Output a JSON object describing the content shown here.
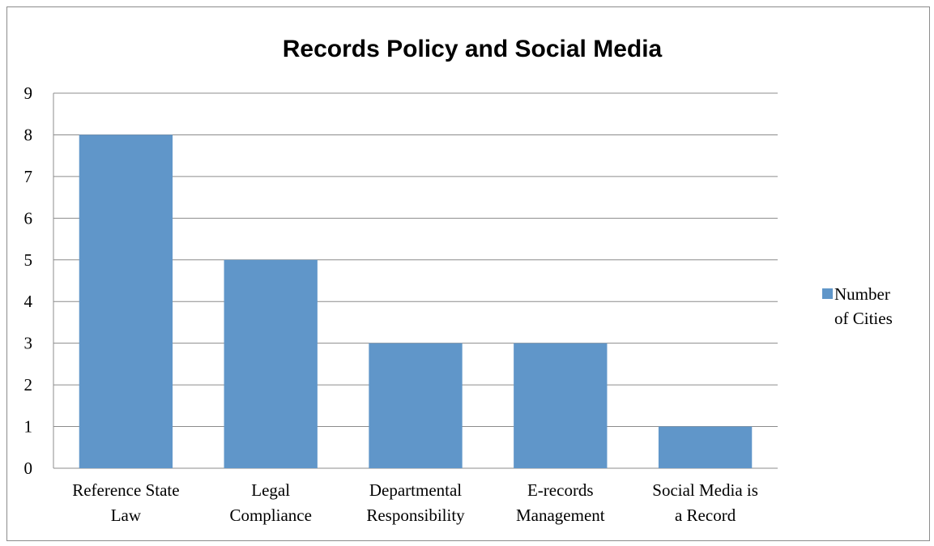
{
  "chart_data": {
    "type": "bar",
    "title": "Records Policy and Social Media",
    "xlabel": "",
    "ylabel": "",
    "ylim": [
      0,
      9
    ],
    "yticks": [
      0,
      1,
      2,
      3,
      4,
      5,
      6,
      7,
      8,
      9
    ],
    "grid": true,
    "legend_position": "right",
    "categories": [
      [
        "Reference State",
        "Law"
      ],
      [
        "Legal",
        "Compliance"
      ],
      [
        "Departmental",
        "Responsibility"
      ],
      [
        "E-records",
        "Management"
      ],
      [
        "Social Media is",
        "a Record"
      ]
    ],
    "series": [
      {
        "name": [
          "Number",
          "of Cities"
        ],
        "color": "#6096C9",
        "values": [
          8,
          5,
          3,
          3,
          1
        ]
      }
    ]
  }
}
